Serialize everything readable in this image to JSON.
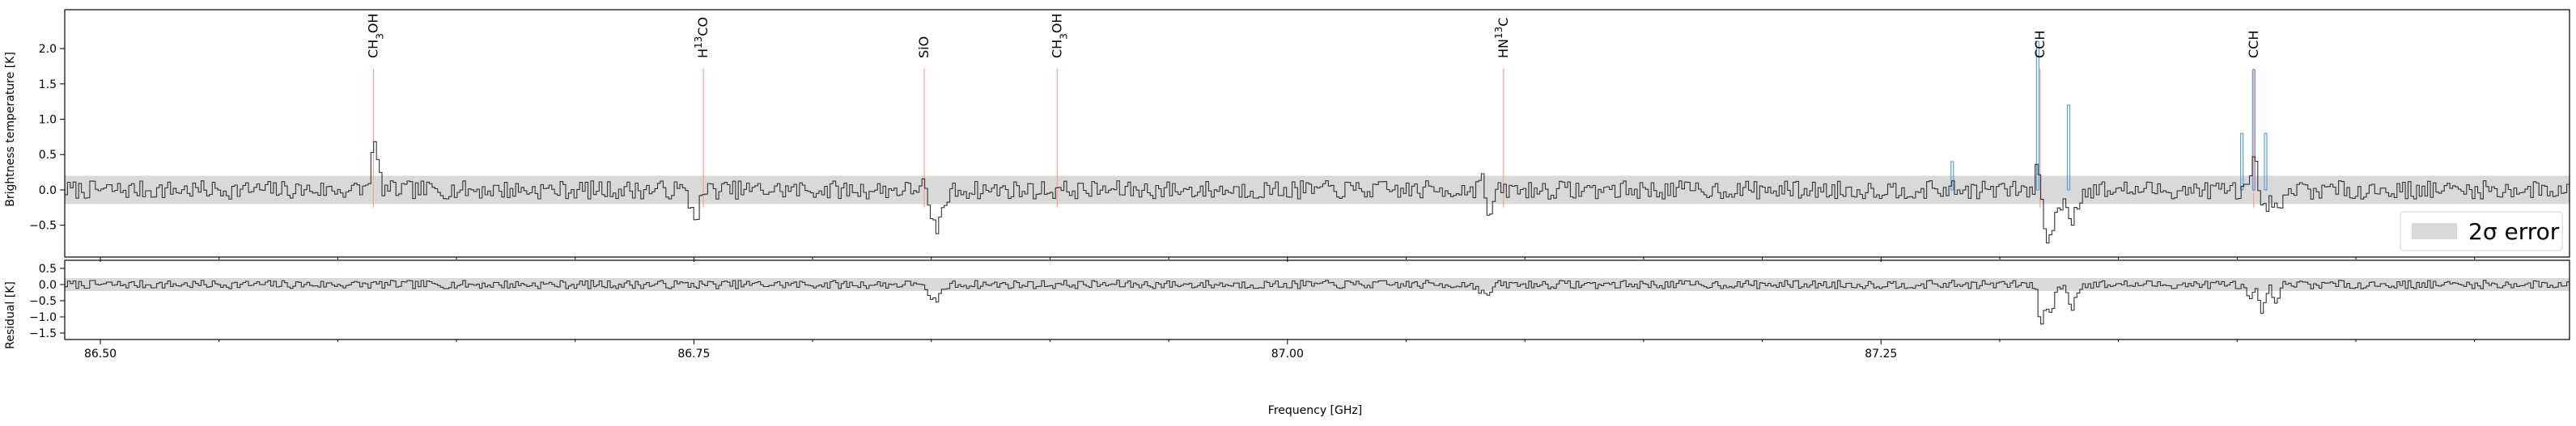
{
  "chart_data": [
    {
      "type": "line",
      "panel": "main",
      "xlabel": "",
      "ylabel": "Brightness temperature [K]",
      "xlim": [
        86.485,
        87.54
      ],
      "ylim": [
        -0.95,
        2.55
      ],
      "yticks": [
        2.0,
        1.5,
        1.0,
        0.5,
        0.0,
        -0.5
      ],
      "ytick_labels": [
        "2.0",
        "1.5",
        "1.0",
        "0.5",
        "0.0",
        "−0.5"
      ],
      "error_band": {
        "lower": -0.2,
        "upper": 0.2,
        "label": "2σ error",
        "color": "#d9d9d9"
      },
      "legend": {
        "position": "lower-right",
        "entries": [
          "2σ error"
        ]
      },
      "features": [
        {
          "x": 86.615,
          "amp": 0.6,
          "width": 0.0015
        },
        {
          "x": 86.754,
          "amp": 0.0,
          "width": 0.0015
        },
        {
          "x": 86.75,
          "amp": -0.35,
          "width": 0.002
        },
        {
          "x": 86.846,
          "amp": 0.25,
          "width": 0.0015
        },
        {
          "x": 86.851,
          "amp": -0.55,
          "width": 0.003
        },
        {
          "x": 86.902,
          "amp": 0.0,
          "width": 0.0015
        },
        {
          "x": 87.081,
          "amp": 0.35,
          "width": 0.0012
        },
        {
          "x": 87.084,
          "amp": -0.35,
          "width": 0.002
        },
        {
          "x": 87.316,
          "amp": 0.6,
          "width": 0.0012
        },
        {
          "x": 87.32,
          "amp": -0.7,
          "width": 0.003
        },
        {
          "x": 87.33,
          "amp": -0.4,
          "width": 0.002
        },
        {
          "x": 87.407,
          "amp": 0.5,
          "width": 0.0012
        },
        {
          "x": 87.41,
          "amp": -0.35,
          "width": 0.002
        },
        {
          "x": 87.417,
          "amp": -0.35,
          "width": 0.002
        }
      ],
      "lines": [
        {
          "label": "CH3OH",
          "html": "CH<tspan baseline-shift=\"sub\" font-size=\"12\">3</tspan>OH",
          "x": 86.615,
          "top": 1.72,
          "color": "#ff9a9a"
        },
        {
          "label": "H13CO",
          "html": "H<tspan baseline-shift=\"super\" font-size=\"12\">13</tspan>CO",
          "x": 86.754,
          "top": 1.72,
          "color": "#ff9a9a"
        },
        {
          "label": "SiO",
          "html": "SiO",
          "x": 86.847,
          "top": 1.72,
          "color": "#ff9a9a"
        },
        {
          "label": "CH3OH",
          "html": "CH<tspan baseline-shift=\"sub\" font-size=\"12\">3</tspan>OH",
          "x": 86.903,
          "top": 1.72,
          "color": "#ff9a9a"
        },
        {
          "label": "HN13C",
          "html": "HN<tspan baseline-shift=\"super\" font-size=\"12\">13</tspan>C",
          "x": 87.091,
          "top": 1.72,
          "color": "#ff9a9a"
        },
        {
          "label": "CCH",
          "html": "CCH",
          "x": 87.317,
          "top": 1.72,
          "color": "#ff9a9a"
        },
        {
          "label": "CCH",
          "html": "CCH",
          "x": 87.407,
          "top": 1.72,
          "color": "#ff9a9a"
        }
      ],
      "blue_bars": [
        {
          "x": 87.28,
          "value": 0.4
        },
        {
          "x": 87.316,
          "value": 2.1
        },
        {
          "x": 87.329,
          "value": 1.2
        },
        {
          "x": 87.402,
          "value": 0.8
        },
        {
          "x": 87.407,
          "value": 1.7
        },
        {
          "x": 87.412,
          "value": 0.8
        }
      ],
      "noise_seed": 7,
      "noise_amp": 0.13
    },
    {
      "type": "line",
      "panel": "residual",
      "xlabel": "Frequency [GHz]",
      "ylabel": "Residual [K]",
      "xlim": [
        86.485,
        87.54
      ],
      "ylim": [
        -1.7,
        0.75
      ],
      "yticks": [
        0.5,
        0.0,
        -0.5,
        -1.0,
        -1.5
      ],
      "ytick_labels": [
        "0.5",
        "0.0",
        "−0.5",
        "−1.0",
        "−1.5"
      ],
      "xticks": [
        86.5,
        86.75,
        87.0,
        87.25
      ],
      "xtick_labels": [
        "86.50",
        "86.75",
        "87.00",
        "87.25"
      ],
      "error_band": {
        "lower": -0.2,
        "upper": 0.2,
        "color": "#d9d9d9"
      },
      "features": [
        {
          "x": 86.845,
          "amp": 0.2,
          "width": 0.002
        },
        {
          "x": 86.85,
          "amp": -0.55,
          "width": 0.003
        },
        {
          "x": 87.083,
          "amp": -0.35,
          "width": 0.002
        },
        {
          "x": 87.317,
          "amp": -1.2,
          "width": 0.0012
        },
        {
          "x": 87.321,
          "amp": -0.9,
          "width": 0.0015
        },
        {
          "x": 87.33,
          "amp": -0.7,
          "width": 0.0015
        },
        {
          "x": 87.405,
          "amp": -0.5,
          "width": 0.0015
        },
        {
          "x": 87.41,
          "amp": -1.0,
          "width": 0.0012
        },
        {
          "x": 87.416,
          "amp": -0.7,
          "width": 0.0012
        }
      ],
      "noise_seed": 7,
      "noise_amp": 0.13
    }
  ]
}
